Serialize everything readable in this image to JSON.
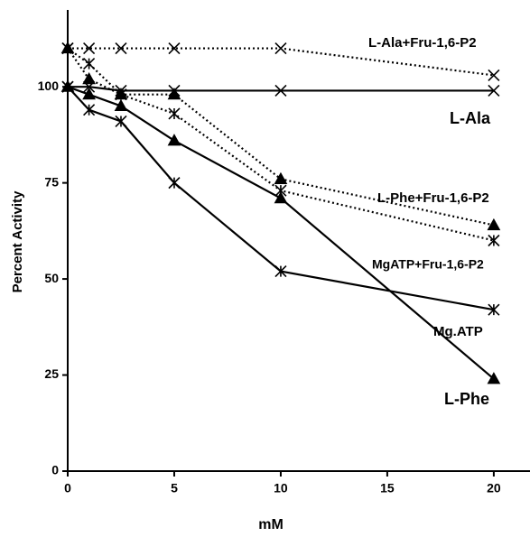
{
  "chart_data": {
    "type": "line",
    "x_label": "mM",
    "y_label": "Percent Activity",
    "x": [
      0,
      1,
      2.5,
      5,
      10,
      20
    ],
    "xlim": [
      0,
      21.7
    ],
    "xticks": [
      0,
      5,
      10,
      15,
      20
    ],
    "ylim": [
      0,
      120
    ],
    "yticks": [
      0,
      25,
      50,
      75,
      100
    ],
    "series": [
      {
        "name": "L-Ala+Fru-1,6-P2",
        "color": "#000000",
        "marker": "x",
        "dash": "dotted",
        "values": [
          110,
          110,
          110,
          110,
          110,
          103
        ]
      },
      {
        "name": "L-Ala",
        "color": "#000000",
        "marker": "x",
        "dash": "solid",
        "values": [
          100,
          100,
          99,
          99,
          99,
          99
        ]
      },
      {
        "name": "L-Phe+Fru-1,6-P2",
        "color": "#000000",
        "marker": "triangle",
        "dash": "dotted",
        "values": [
          110,
          102,
          98,
          98,
          76,
          64
        ]
      },
      {
        "name": "MgATP+Fru-1,6-P2",
        "color": "#000000",
        "marker": "asterisk",
        "dash": "dotted",
        "values": [
          110,
          106,
          98,
          93,
          73,
          60
        ]
      },
      {
        "name": "Mg.ATP",
        "color": "#000000",
        "marker": "asterisk",
        "dash": "solid",
        "values": [
          100,
          94,
          91,
          75,
          52,
          42
        ]
      },
      {
        "name": "L-Phe",
        "color": "#000000",
        "marker": "triangle",
        "dash": "solid",
        "values": [
          100,
          98,
          95,
          86,
          71,
          24
        ]
      }
    ]
  }
}
